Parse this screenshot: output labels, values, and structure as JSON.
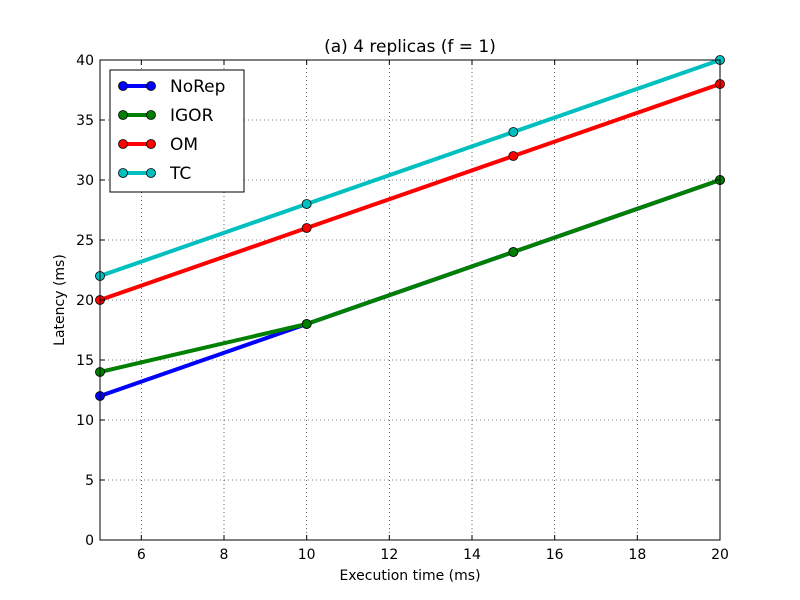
{
  "chart_data": {
    "type": "line",
    "title": "(a) 4 replicas (f = 1)",
    "xlabel": "Execution time (ms)",
    "ylabel": "Latency (ms)",
    "xlim": [
      5,
      20
    ],
    "ylim": [
      0,
      40
    ],
    "xticks": [
      6,
      8,
      10,
      12,
      14,
      16,
      18,
      20
    ],
    "yticks": [
      0,
      5,
      10,
      15,
      20,
      25,
      30,
      35,
      40
    ],
    "grid": true,
    "legend_position": "top-left",
    "x": [
      5,
      10,
      15,
      20
    ],
    "series": [
      {
        "name": "NoRep",
        "color": "#0000ff",
        "values": [
          12,
          18,
          24,
          30
        ]
      },
      {
        "name": "IGOR",
        "color": "#008000",
        "values": [
          14,
          18,
          24,
          30
        ]
      },
      {
        "name": "OM",
        "color": "#ff0000",
        "values": [
          20,
          26,
          32,
          38
        ]
      },
      {
        "name": "TC",
        "color": "#00bfbf",
        "values": [
          22,
          28,
          34,
          40
        ]
      }
    ]
  }
}
